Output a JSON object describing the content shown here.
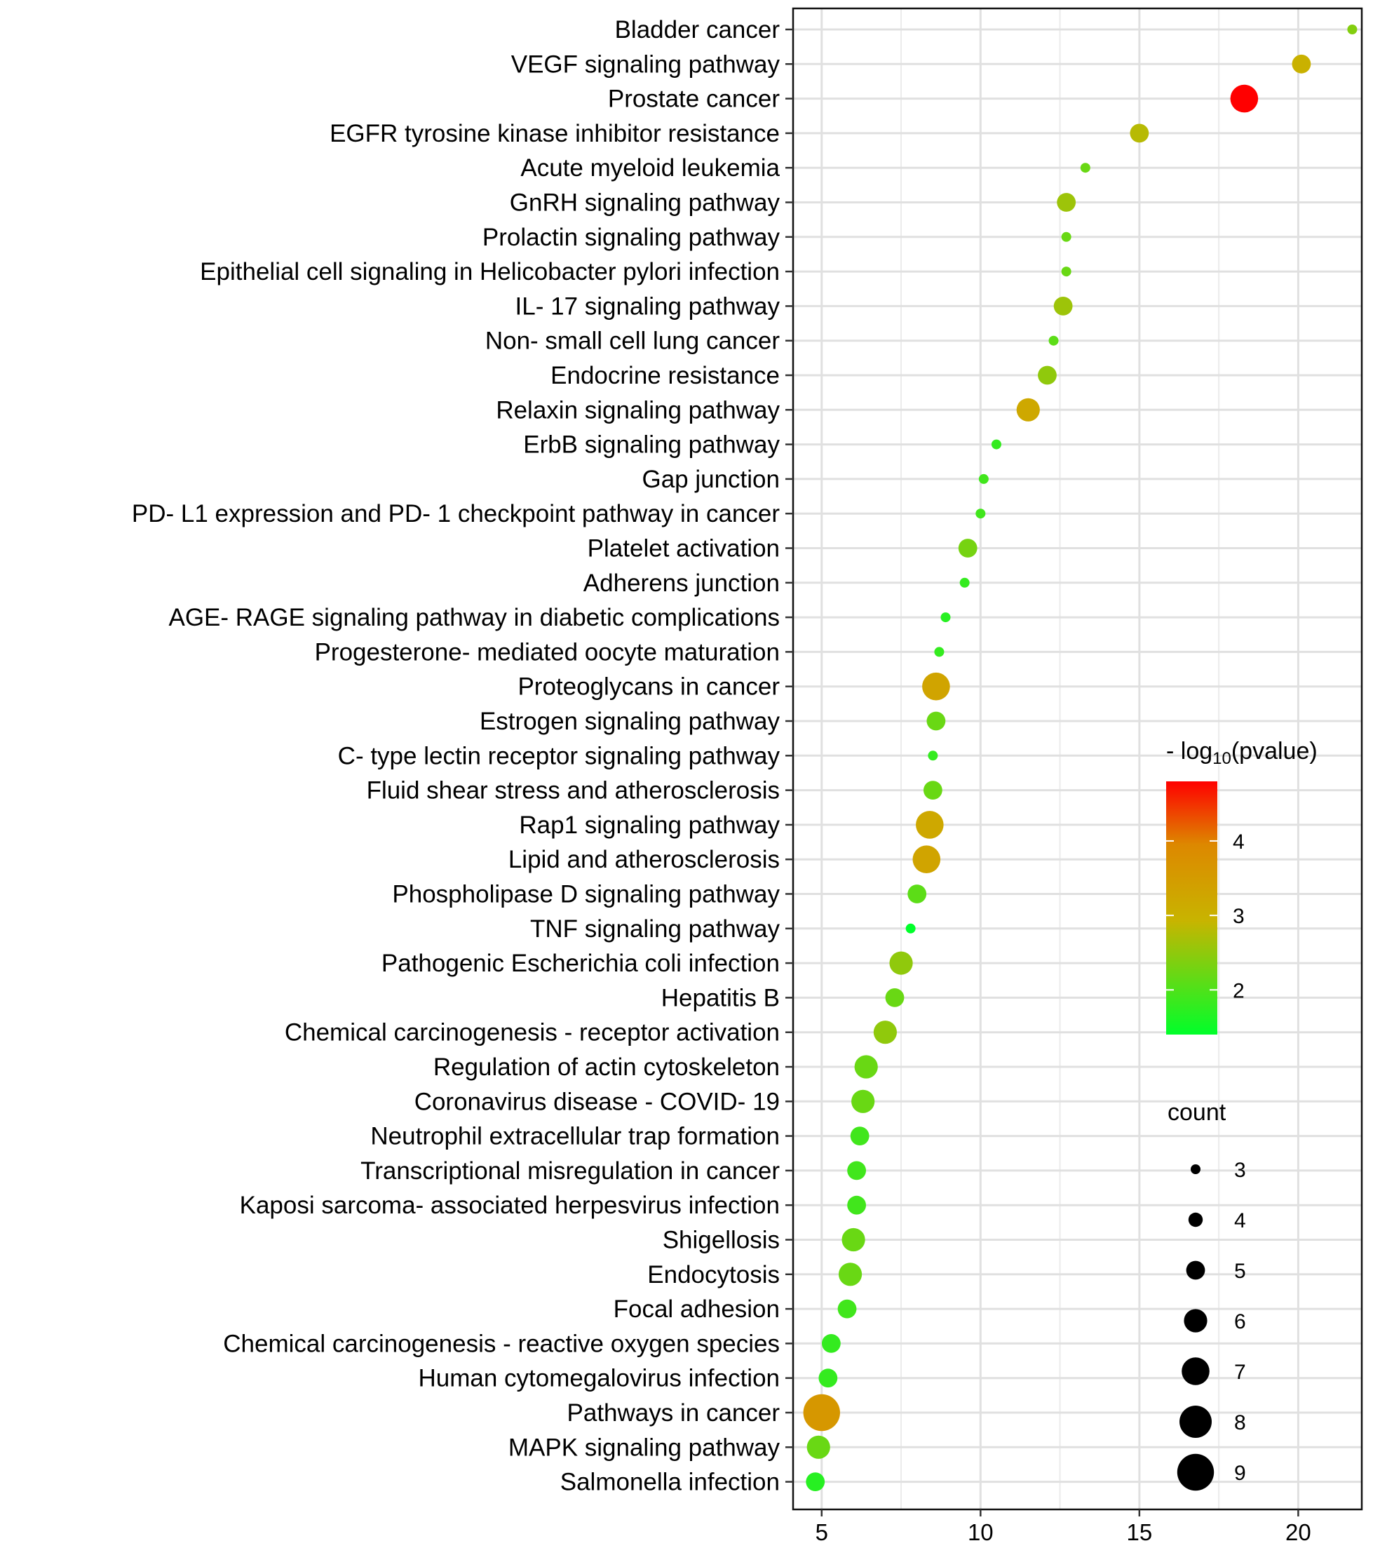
{
  "chart_data": {
    "type": "scatter",
    "title": "",
    "xlabel": "",
    "ylabel": "",
    "xlim": [
      4.1,
      22.0
    ],
    "x_ticks": [
      5,
      10,
      15,
      20
    ],
    "grid": true,
    "color_legend": {
      "title_prefix": "- log",
      "title_subscript": "10",
      "title_suffix": "(pvalue)",
      "range": [
        1.4,
        4.8
      ],
      "ticks": [
        2,
        3,
        4
      ],
      "low_color": "#00FF2A",
      "mid_color": "#C8B400",
      "high_color": "#FF0000"
    },
    "size_legend": {
      "title": "count",
      "values": [
        3,
        4,
        5,
        6,
        7,
        8,
        9
      ]
    },
    "points": [
      {
        "label": "Bladder cancer",
        "x": 21.7,
        "neglog10p": 2.4,
        "count": 3
      },
      {
        "label": "VEGF signaling pathway",
        "x": 20.1,
        "neglog10p": 3.0,
        "count": 5
      },
      {
        "label": "Prostate cancer",
        "x": 18.3,
        "neglog10p": 4.8,
        "count": 7
      },
      {
        "label": "EGFR tyrosine kinase inhibitor resistance",
        "x": 15.0,
        "neglog10p": 2.8,
        "count": 5
      },
      {
        "label": "Acute myeloid leukemia",
        "x": 13.3,
        "neglog10p": 2.2,
        "count": 3
      },
      {
        "label": "GnRH signaling pathway",
        "x": 12.7,
        "neglog10p": 2.6,
        "count": 5
      },
      {
        "label": "Prolactin signaling pathway",
        "x": 12.7,
        "neglog10p": 2.2,
        "count": 3
      },
      {
        "label": "Epithelial cell signaling in Helicobacter pylori infection",
        "x": 12.7,
        "neglog10p": 2.2,
        "count": 3
      },
      {
        "label": "IL- 17 signaling pathway",
        "x": 12.6,
        "neglog10p": 2.6,
        "count": 5
      },
      {
        "label": "Non- small cell lung cancer",
        "x": 12.3,
        "neglog10p": 2.1,
        "count": 3
      },
      {
        "label": "Endocrine resistance",
        "x": 12.1,
        "neglog10p": 2.5,
        "count": 5
      },
      {
        "label": "Relaxin signaling pathway",
        "x": 11.5,
        "neglog10p": 3.2,
        "count": 6
      },
      {
        "label": "ErbB signaling pathway",
        "x": 10.5,
        "neglog10p": 1.8,
        "count": 3
      },
      {
        "label": "Gap junction",
        "x": 10.1,
        "neglog10p": 1.9,
        "count": 3
      },
      {
        "label": "PD- L1 expression and PD- 1 checkpoint pathway in cancer",
        "x": 10.0,
        "neglog10p": 1.9,
        "count": 3
      },
      {
        "label": "Platelet activation",
        "x": 9.6,
        "neglog10p": 2.3,
        "count": 5
      },
      {
        "label": "Adherens junction",
        "x": 9.5,
        "neglog10p": 1.8,
        "count": 3
      },
      {
        "label": "AGE- RAGE signaling pathway in diabetic complications",
        "x": 8.9,
        "neglog10p": 1.7,
        "count": 3
      },
      {
        "label": "Progesterone- mediated oocyte maturation",
        "x": 8.7,
        "neglog10p": 1.8,
        "count": 3
      },
      {
        "label": "Proteoglycans in cancer",
        "x": 8.6,
        "neglog10p": 3.3,
        "count": 7
      },
      {
        "label": "Estrogen signaling pathway",
        "x": 8.6,
        "neglog10p": 2.2,
        "count": 5
      },
      {
        "label": "C- type lectin receptor signaling pathway",
        "x": 8.5,
        "neglog10p": 1.8,
        "count": 3
      },
      {
        "label": "Fluid shear stress and atherosclerosis",
        "x": 8.5,
        "neglog10p": 2.2,
        "count": 5
      },
      {
        "label": "Rap1 signaling pathway",
        "x": 8.4,
        "neglog10p": 3.2,
        "count": 7
      },
      {
        "label": "Lipid and atherosclerosis",
        "x": 8.3,
        "neglog10p": 3.3,
        "count": 7
      },
      {
        "label": "Phospholipase D signaling pathway",
        "x": 8.0,
        "neglog10p": 2.1,
        "count": 5
      },
      {
        "label": "TNF signaling pathway",
        "x": 7.8,
        "neglog10p": 1.4,
        "count": 3
      },
      {
        "label": "Pathogenic Escherichia coli infection",
        "x": 7.5,
        "neglog10p": 2.5,
        "count": 6
      },
      {
        "label": "Hepatitis B",
        "x": 7.3,
        "neglog10p": 2.2,
        "count": 5
      },
      {
        "label": "Chemical carcinogenesis -  receptor activation",
        "x": 7.0,
        "neglog10p": 2.5,
        "count": 6
      },
      {
        "label": "Regulation of actin cytoskeleton",
        "x": 6.4,
        "neglog10p": 2.2,
        "count": 6
      },
      {
        "label": "Coronavirus disease -  COVID- 19",
        "x": 6.3,
        "neglog10p": 2.2,
        "count": 6
      },
      {
        "label": "Neutrophil extracellular trap formation",
        "x": 6.2,
        "neglog10p": 1.9,
        "count": 5
      },
      {
        "label": "Transcriptional misregulation in cancer",
        "x": 6.1,
        "neglog10p": 1.9,
        "count": 5
      },
      {
        "label": "Kaposi sarcoma- associated herpesvirus infection",
        "x": 6.1,
        "neglog10p": 1.9,
        "count": 5
      },
      {
        "label": "Shigellosis",
        "x": 6.0,
        "neglog10p": 2.2,
        "count": 6
      },
      {
        "label": "Endocytosis",
        "x": 5.9,
        "neglog10p": 2.2,
        "count": 6
      },
      {
        "label": "Focal adhesion",
        "x": 5.8,
        "neglog10p": 1.9,
        "count": 5
      },
      {
        "label": "Chemical carcinogenesis -  reactive oxygen species",
        "x": 5.3,
        "neglog10p": 1.8,
        "count": 5
      },
      {
        "label": "Human cytomegalovirus infection",
        "x": 5.2,
        "neglog10p": 1.8,
        "count": 5
      },
      {
        "label": "Pathways in cancer",
        "x": 5.0,
        "neglog10p": 3.6,
        "count": 9
      },
      {
        "label": "MAPK signaling pathway",
        "x": 4.9,
        "neglog10p": 2.2,
        "count": 6
      },
      {
        "label": "Salmonella infection",
        "x": 4.8,
        "neglog10p": 1.7,
        "count": 5
      }
    ]
  }
}
